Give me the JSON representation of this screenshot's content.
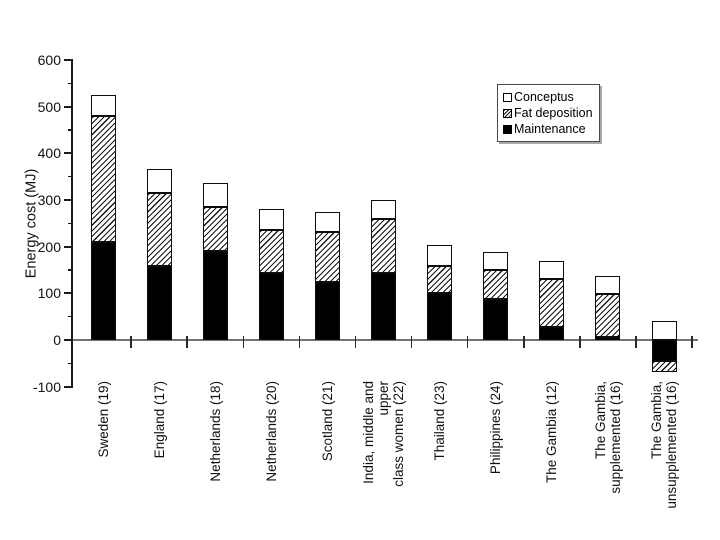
{
  "colors": {
    "background": "#ffffff",
    "bar_fill": "#000000",
    "bar_outline": "#0d0d0d",
    "hatch_line": "#151515",
    "y_axis": "#1a1a1a",
    "x_axis": "#737373",
    "text": "#111111"
  },
  "chart_data": {
    "type": "bar",
    "stacked": true,
    "title": "",
    "xlabel": "",
    "ylabel": "Energy cost (MJ)",
    "ylim": [
      -100,
      600
    ],
    "yticks": [
      600,
      500,
      400,
      300,
      200,
      100,
      0,
      -100
    ],
    "minor_tick_interval": 50,
    "grid": false,
    "legend": {
      "position": "upper-right",
      "entries": [
        {
          "label": "Conceptus",
          "swatch": "white"
        },
        {
          "label": "Fat deposition",
          "swatch": "hatched"
        },
        {
          "label": "Maintenance",
          "swatch": "black"
        }
      ]
    },
    "categories": [
      {
        "lines": [
          "Sweden (19)"
        ]
      },
      {
        "lines": [
          "England (17)"
        ]
      },
      {
        "lines": [
          "Netherlands (18)"
        ]
      },
      {
        "lines": [
          "Netherlands (20)"
        ]
      },
      {
        "lines": [
          "Scotland (21)"
        ]
      },
      {
        "lines": [
          "India, middle and upper",
          "class women (22)"
        ]
      },
      {
        "lines": [
          "Thailand (23)"
        ]
      },
      {
        "lines": [
          "Philippines (24)"
        ]
      },
      {
        "lines": [
          "The Gambia (12)"
        ]
      },
      {
        "lines": [
          "The Gambia,",
          "supplemented (16)"
        ]
      },
      {
        "lines": [
          "The Gambia,",
          "unsupplemented (16)"
        ]
      }
    ],
    "series": [
      {
        "name": "Maintenance",
        "swatch": "black",
        "values": [
          210,
          158,
          190,
          144,
          124,
          143,
          100,
          88,
          28,
          6,
          -46
        ]
      },
      {
        "name": "Fat deposition",
        "swatch": "hatched",
        "values": [
          270,
          158,
          96,
          92,
          107,
          116,
          58,
          61,
          102,
          92,
          -23
        ]
      },
      {
        "name": "Conceptus",
        "swatch": "white",
        "values": [
          45,
          50,
          50,
          45,
          43,
          40,
          46,
          40,
          40,
          39,
          41
        ]
      }
    ],
    "stack_totals": [
      525,
      366,
      336,
      281,
      274,
      299,
      204,
      189,
      170,
      137,
      -28
    ]
  }
}
